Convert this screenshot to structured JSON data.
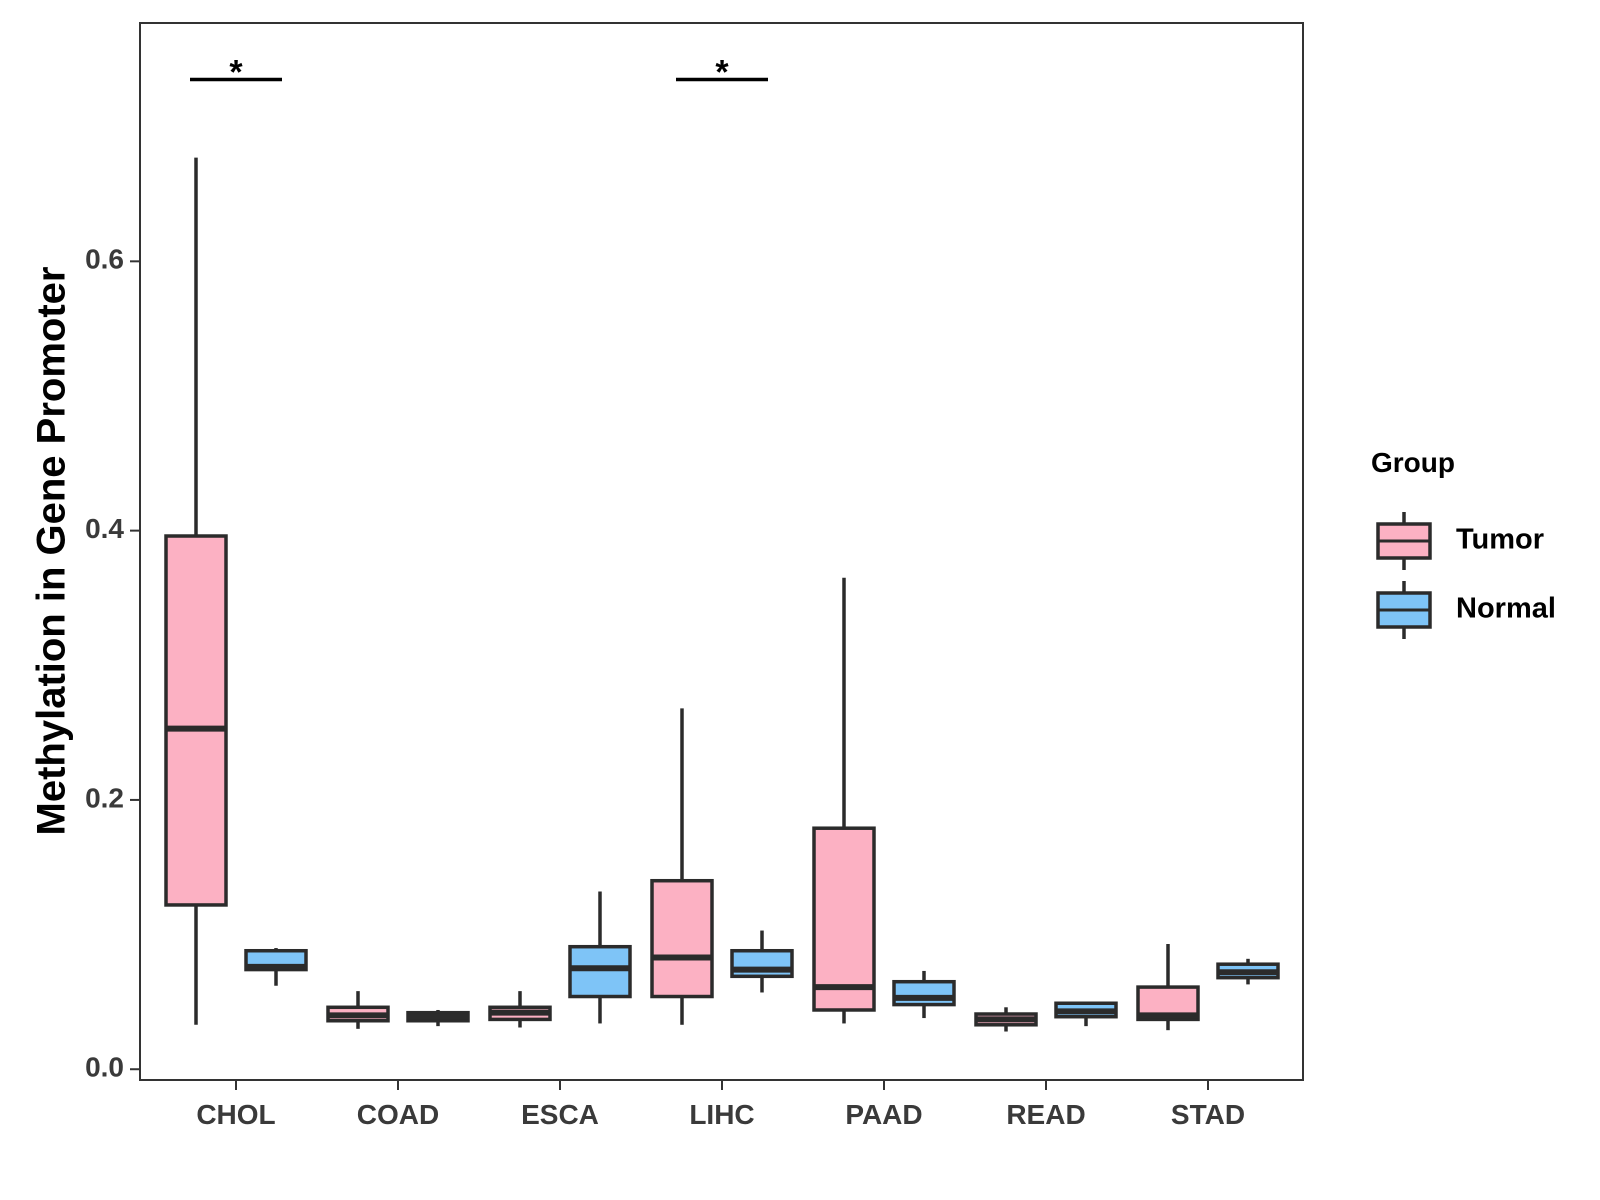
{
  "chart_data": {
    "type": "boxplot",
    "title": "",
    "xlabel": "",
    "ylabel": "Methylation in Gene Promoter",
    "ylim": [
      -0.008,
      0.777
    ],
    "yticks": [
      0.0,
      0.2,
      0.4,
      0.6
    ],
    "ytick_labels": [
      "0.0",
      "0.2",
      "0.4",
      "0.6"
    ],
    "categories": [
      "CHOL",
      "COAD",
      "ESCA",
      "LIHC",
      "PAAD",
      "READ",
      "STAD"
    ],
    "grid": false,
    "legend": {
      "title": "Group",
      "position": "right",
      "entries": [
        {
          "name": "Tumor",
          "color": "#fcb1c3"
        },
        {
          "name": "Normal",
          "color": "#7ec4f7"
        }
      ]
    },
    "series": [
      {
        "name": "Tumor",
        "color": "#fcb1c3",
        "boxes": [
          {
            "category": "CHOL",
            "min": 0.033,
            "q1": 0.122,
            "median": 0.253,
            "q3": 0.396,
            "max": 0.677
          },
          {
            "category": "COAD",
            "min": 0.03,
            "q1": 0.036,
            "median": 0.04,
            "q3": 0.046,
            "max": 0.058
          },
          {
            "category": "ESCA",
            "min": 0.031,
            "q1": 0.037,
            "median": 0.042,
            "q3": 0.046,
            "max": 0.058
          },
          {
            "category": "LIHC",
            "min": 0.033,
            "q1": 0.054,
            "median": 0.083,
            "q3": 0.14,
            "max": 0.268
          },
          {
            "category": "PAAD",
            "min": 0.034,
            "q1": 0.044,
            "median": 0.061,
            "q3": 0.179,
            "max": 0.365
          },
          {
            "category": "READ",
            "min": 0.028,
            "q1": 0.033,
            "median": 0.037,
            "q3": 0.041,
            "max": 0.046
          },
          {
            "category": "STAD",
            "min": 0.029,
            "q1": 0.037,
            "median": 0.04,
            "q3": 0.061,
            "max": 0.093
          }
        ]
      },
      {
        "name": "Normal",
        "color": "#7ec4f7",
        "boxes": [
          {
            "category": "CHOL",
            "min": 0.062,
            "q1": 0.074,
            "median": 0.076,
            "q3": 0.088,
            "max": 0.09
          },
          {
            "category": "COAD",
            "min": 0.032,
            "q1": 0.036,
            "median": 0.039,
            "q3": 0.042,
            "max": 0.044
          },
          {
            "category": "ESCA",
            "min": 0.034,
            "q1": 0.054,
            "median": 0.075,
            "q3": 0.091,
            "max": 0.132
          },
          {
            "category": "LIHC",
            "min": 0.057,
            "q1": 0.069,
            "median": 0.074,
            "q3": 0.088,
            "max": 0.103
          },
          {
            "category": "PAAD",
            "min": 0.038,
            "q1": 0.048,
            "median": 0.053,
            "q3": 0.065,
            "max": 0.073
          },
          {
            "category": "READ",
            "min": 0.032,
            "q1": 0.039,
            "median": 0.043,
            "q3": 0.049,
            "max": 0.05
          },
          {
            "category": "STAD",
            "min": 0.063,
            "q1": 0.068,
            "median": 0.072,
            "q3": 0.078,
            "max": 0.082
          }
        ]
      }
    ],
    "annotations": [
      {
        "category": "CHOL",
        "text": "*",
        "y": 0.735
      },
      {
        "category": "LIHC",
        "text": "*",
        "y": 0.735
      }
    ]
  }
}
